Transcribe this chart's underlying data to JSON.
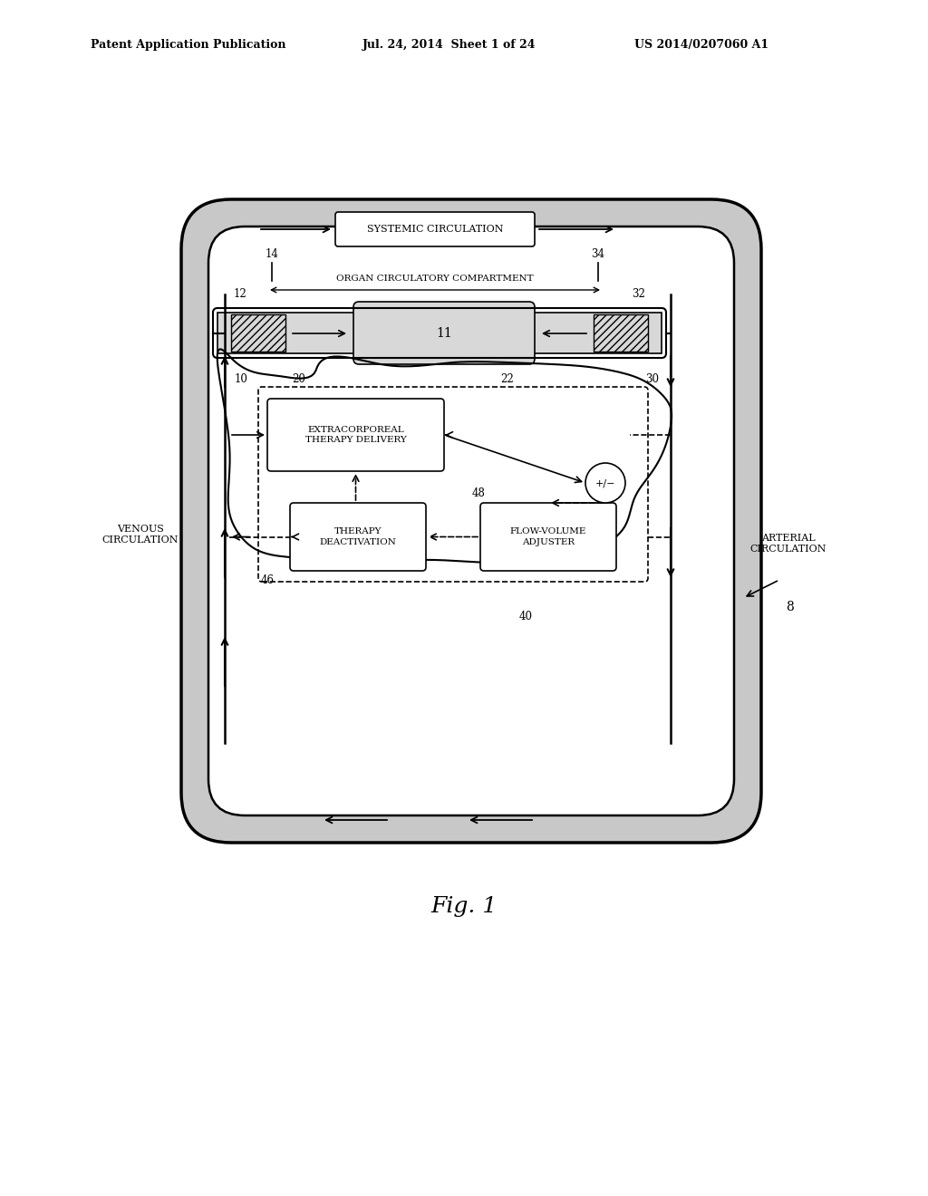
{
  "bg_color": "#ffffff",
  "header_line1": "Patent Application Publication",
  "header_line2": "Jul. 24, 2014  Sheet 1 of 24",
  "header_line3": "US 2014/0207060 A1",
  "fig_label": "Fig. 1",
  "gray_stipple": "#c8c8c8",
  "white": "#ffffff",
  "black": "#000000",
  "hatch_gray": "#d0d0d0"
}
